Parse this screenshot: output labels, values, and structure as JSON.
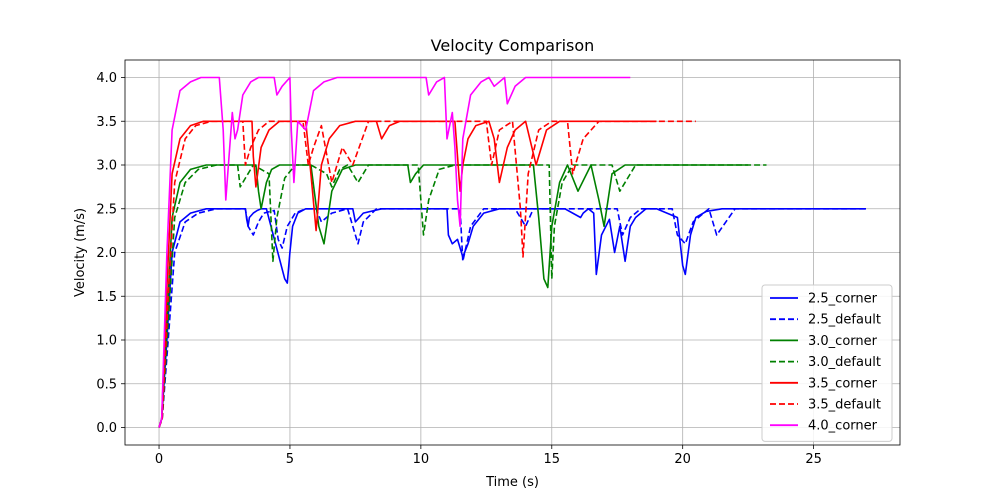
{
  "chart_data": {
    "type": "line",
    "title": "Velocity Comparison",
    "xlabel": "Time (s)",
    "ylabel": "Velocity (m/s)",
    "xlim": [
      -1.3,
      28.3
    ],
    "ylim": [
      -0.2,
      4.2
    ],
    "xticks": [
      0,
      5,
      10,
      15,
      20,
      25
    ],
    "yticks": [
      0.0,
      0.5,
      1.0,
      1.5,
      2.0,
      2.5,
      3.0,
      3.5,
      4.0
    ],
    "xtick_labels": [
      "0",
      "5",
      "10",
      "15",
      "20",
      "25"
    ],
    "ytick_labels": [
      "0.0",
      "0.5",
      "1.0",
      "1.5",
      "2.0",
      "2.5",
      "3.0",
      "3.5",
      "4.0"
    ],
    "grid": true,
    "legend_position": "lower-right",
    "series": [
      {
        "name": "2.5_corner",
        "color": "#0000ff",
        "dash": "solid",
        "x": [
          0,
          0.1,
          0.3,
          0.5,
          0.8,
          1.2,
          1.8,
          3.3,
          3.35,
          3.4,
          3.45,
          3.6,
          3.75,
          3.9,
          4.1,
          4.8,
          4.9,
          5.0,
          5.1,
          5.3,
          5.6,
          6.0,
          7.4,
          7.5,
          7.8,
          8.5,
          10.5,
          11.0,
          11.05,
          11.2,
          11.4,
          11.6,
          11.8,
          12.0,
          12.4,
          13.0,
          15.5,
          16.1,
          16.2,
          16.4,
          16.6,
          16.7,
          16.9,
          17.2,
          17.4,
          17.6,
          17.8,
          18.0,
          18.2,
          18.4,
          18.6,
          19.0,
          19.8,
          20.0,
          20.1,
          20.3,
          20.5,
          20.9,
          21.5,
          27.0
        ],
        "y": [
          0,
          0.1,
          1.0,
          2.0,
          2.35,
          2.45,
          2.5,
          2.5,
          2.38,
          2.3,
          2.4,
          2.45,
          2.48,
          2.5,
          2.5,
          1.7,
          1.65,
          2.0,
          2.3,
          2.45,
          2.5,
          2.5,
          2.5,
          2.35,
          2.45,
          2.5,
          2.5,
          2.5,
          2.2,
          2.1,
          2.15,
          1.95,
          2.1,
          2.3,
          2.45,
          2.5,
          2.5,
          2.4,
          2.45,
          2.5,
          2.45,
          1.75,
          2.2,
          2.38,
          2.0,
          2.3,
          1.9,
          2.3,
          2.4,
          2.45,
          2.5,
          2.5,
          2.4,
          1.85,
          1.75,
          2.2,
          2.4,
          2.47,
          2.5,
          2.5
        ]
      },
      {
        "name": "2.5_default",
        "color": "#0000ff",
        "dash": "dashed",
        "x": [
          0,
          0.12,
          0.35,
          0.6,
          1.0,
          1.5,
          2.2,
          3.3,
          3.4,
          3.6,
          3.8,
          4.0,
          4.4,
          4.55,
          4.7,
          4.9,
          5.2,
          5.6,
          6.0,
          6.2,
          6.6,
          7.2,
          7.6,
          7.8,
          8.3,
          11.5,
          11.6,
          11.9,
          12.4,
          13.6,
          14.0,
          14.3,
          17.5,
          17.7,
          18.0,
          18.4,
          19.6,
          19.8,
          20.1,
          20.4,
          21.0,
          21.3,
          22.0,
          27.0
        ],
        "y": [
          0,
          0.1,
          1.0,
          2.0,
          2.35,
          2.45,
          2.5,
          2.5,
          2.3,
          2.2,
          2.35,
          2.45,
          2.48,
          2.15,
          2.05,
          2.3,
          2.45,
          2.5,
          2.5,
          2.35,
          2.45,
          2.5,
          2.1,
          2.35,
          2.5,
          2.5,
          1.9,
          2.3,
          2.5,
          2.5,
          2.3,
          2.5,
          2.5,
          2.2,
          2.4,
          2.5,
          2.5,
          2.2,
          2.1,
          2.35,
          2.5,
          2.2,
          2.5,
          2.5
        ]
      },
      {
        "name": "3.0_corner",
        "color": "#008000",
        "dash": "solid",
        "x": [
          0,
          0.1,
          0.3,
          0.5,
          0.8,
          1.2,
          1.8,
          3.7,
          3.8,
          3.9,
          4.1,
          4.3,
          4.6,
          4.9,
          5.8,
          6.1,
          6.3,
          6.6,
          7.0,
          7.5,
          9.5,
          9.6,
          9.8,
          10.1,
          10.5,
          11.5,
          14.3,
          14.5,
          14.7,
          14.85,
          15.0,
          15.3,
          15.6,
          16.0,
          16.5,
          16.8,
          17.0,
          17.3,
          17.8,
          22.5
        ],
        "y": [
          0,
          0.1,
          1.2,
          2.4,
          2.8,
          2.95,
          3.0,
          3.0,
          2.7,
          2.5,
          2.8,
          2.95,
          3.0,
          3.0,
          3.0,
          2.3,
          2.1,
          2.7,
          2.95,
          3.0,
          3.0,
          2.8,
          2.9,
          3.0,
          3.0,
          3.0,
          3.0,
          2.4,
          1.7,
          1.6,
          2.3,
          2.8,
          3.0,
          2.7,
          3.0,
          2.6,
          2.3,
          2.9,
          3.0,
          3.0
        ]
      },
      {
        "name": "3.0_default",
        "color": "#008000",
        "dash": "dashed",
        "x": [
          0,
          0.12,
          0.35,
          0.6,
          1.0,
          1.5,
          2.2,
          3.0,
          3.1,
          3.3,
          3.6,
          4.2,
          4.35,
          4.5,
          4.8,
          5.2,
          5.8,
          6.4,
          6.6,
          6.9,
          7.2,
          7.6,
          8.0,
          9.9,
          10.1,
          10.3,
          10.7,
          11.3,
          14.9,
          15.0,
          15.1,
          15.4,
          15.8,
          16.3,
          17.3,
          17.6,
          18.2,
          23.2
        ],
        "y": [
          0,
          0.1,
          1.2,
          2.4,
          2.8,
          2.95,
          3.0,
          3.0,
          2.75,
          2.85,
          3.0,
          2.9,
          1.9,
          2.4,
          2.85,
          3.0,
          3.0,
          2.9,
          2.75,
          2.95,
          3.0,
          2.8,
          3.0,
          3.0,
          2.2,
          2.6,
          2.95,
          3.0,
          3.0,
          1.7,
          2.3,
          2.8,
          3.0,
          3.0,
          3.0,
          2.7,
          3.0,
          3.0
        ]
      },
      {
        "name": "3.5_corner",
        "color": "#ff0000",
        "dash": "solid",
        "x": [
          0,
          0.1,
          0.3,
          0.5,
          0.8,
          1.2,
          1.7,
          3.55,
          3.6,
          3.7,
          3.9,
          4.2,
          4.6,
          5.6,
          5.8,
          6.0,
          6.2,
          6.5,
          6.9,
          7.5,
          8.3,
          8.5,
          8.8,
          9.2,
          9.7,
          11.3,
          11.4,
          11.5,
          11.6,
          11.8,
          12.1,
          12.6,
          12.8,
          13.0,
          13.3,
          13.6,
          14.0,
          14.4,
          14.8,
          15.3,
          15.7,
          19.0
        ],
        "y": [
          0,
          0.1,
          1.6,
          2.9,
          3.3,
          3.45,
          3.5,
          3.5,
          3.1,
          2.75,
          3.2,
          3.4,
          3.5,
          3.5,
          2.9,
          2.25,
          3.0,
          3.3,
          3.45,
          3.5,
          3.5,
          3.3,
          3.45,
          3.5,
          3.5,
          3.5,
          3.1,
          2.7,
          3.0,
          3.3,
          3.45,
          3.5,
          3.3,
          2.8,
          3.2,
          3.4,
          3.5,
          3.0,
          3.4,
          3.5,
          3.5,
          3.5
        ]
      },
      {
        "name": "3.5_default",
        "color": "#ff0000",
        "dash": "dashed",
        "x": [
          0,
          0.12,
          0.35,
          0.6,
          1.0,
          1.4,
          2.0,
          3.2,
          3.3,
          3.5,
          3.8,
          4.2,
          4.6,
          5.5,
          5.7,
          5.9,
          6.2,
          6.6,
          7.0,
          7.4,
          8.0,
          12.5,
          12.7,
          13.0,
          13.5,
          13.8,
          13.9,
          14.1,
          14.5,
          15.0,
          15.6,
          15.8,
          16.2,
          16.8,
          20.5
        ],
        "y": [
          0,
          0.1,
          1.5,
          2.8,
          3.3,
          3.45,
          3.5,
          3.5,
          3.0,
          3.2,
          3.4,
          3.5,
          3.5,
          3.5,
          3.0,
          3.2,
          3.45,
          2.8,
          3.2,
          3.0,
          3.5,
          3.5,
          3.0,
          3.4,
          3.5,
          2.5,
          1.95,
          2.9,
          3.4,
          3.5,
          3.5,
          2.9,
          3.3,
          3.5,
          3.5
        ]
      },
      {
        "name": "4.0_corner",
        "color": "#ff00ff",
        "dash": "solid",
        "x": [
          0,
          0.1,
          0.3,
          0.5,
          0.8,
          1.2,
          1.6,
          2.3,
          2.35,
          2.45,
          2.55,
          2.7,
          2.8,
          2.9,
          3.0,
          3.2,
          3.5,
          3.8,
          4.4,
          4.5,
          4.7,
          5.0,
          5.05,
          5.15,
          5.3,
          5.6,
          5.9,
          6.3,
          6.8,
          7.5,
          10.2,
          10.3,
          10.6,
          10.9,
          11.0,
          11.2,
          11.3,
          11.4,
          11.5,
          11.6,
          11.9,
          12.3,
          12.6,
          12.8,
          13.2,
          13.3,
          13.6,
          14.0,
          18.0
        ],
        "y": [
          0,
          0.1,
          2.0,
          3.4,
          3.85,
          3.95,
          4.0,
          4.0,
          3.8,
          3.4,
          2.6,
          3.2,
          3.6,
          3.3,
          3.4,
          3.8,
          3.95,
          4.0,
          4.0,
          3.8,
          3.9,
          4.0,
          3.4,
          2.8,
          3.5,
          3.4,
          3.85,
          3.95,
          4.0,
          4.0,
          4.0,
          3.8,
          3.95,
          4.0,
          3.3,
          3.6,
          3.2,
          2.6,
          2.3,
          3.3,
          3.8,
          3.95,
          4.0,
          3.9,
          4.0,
          3.7,
          3.9,
          4.0,
          4.0
        ]
      }
    ]
  }
}
